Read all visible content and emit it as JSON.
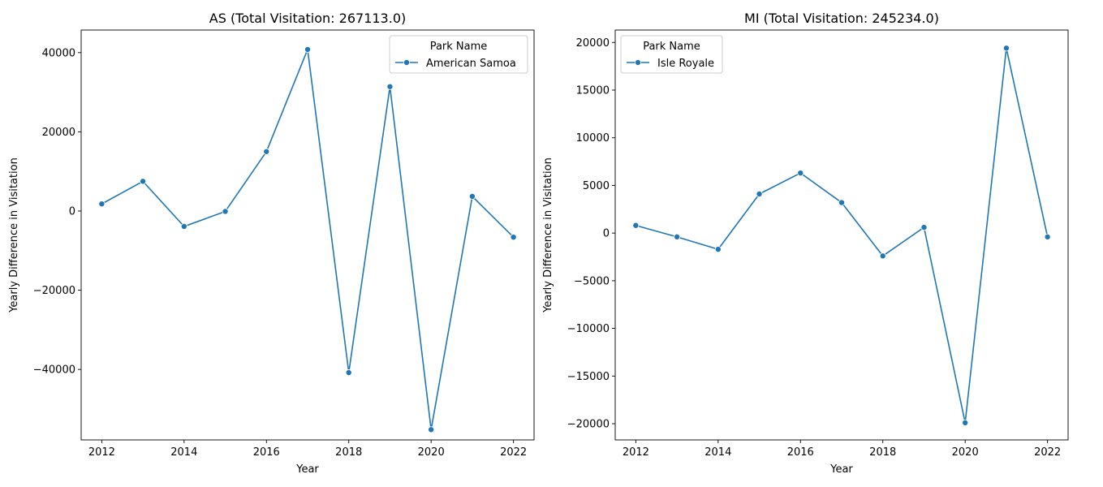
{
  "chart_data": [
    {
      "type": "line",
      "title": "AS (Total Visitation: 267113.0)",
      "xlabel": "Year",
      "ylabel": "Yearly Difference in Visitation",
      "x": [
        2012,
        2013,
        2014,
        2015,
        2016,
        2017,
        2018,
        2019,
        2020,
        2021,
        2022
      ],
      "xticks": [
        2012,
        2014,
        2016,
        2018,
        2020,
        2022
      ],
      "yticks": [
        -40000,
        -20000,
        0,
        20000,
        40000
      ],
      "xlim": [
        2011.5,
        2022.5
      ],
      "ylim": [
        -57800,
        45700
      ],
      "grid": false,
      "legend": {
        "title": "Park Name",
        "placement": "top-right"
      },
      "series": [
        {
          "name": "American Samoa",
          "color": "#1f77b4",
          "values": [
            1800,
            7500,
            -3900,
            -100,
            15000,
            40800,
            -40800,
            31400,
            -55200,
            3700,
            -6600
          ]
        }
      ]
    },
    {
      "type": "line",
      "title": "MI (Total Visitation: 245234.0)",
      "xlabel": "Year",
      "ylabel": "Yearly Difference in Visitation",
      "x": [
        2012,
        2013,
        2014,
        2015,
        2016,
        2017,
        2018,
        2019,
        2020,
        2021,
        2022
      ],
      "xticks": [
        2012,
        2014,
        2016,
        2018,
        2020,
        2022
      ],
      "yticks": [
        -20000,
        -15000,
        -10000,
        -5000,
        0,
        5000,
        10000,
        15000,
        20000
      ],
      "xlim": [
        2011.5,
        2022.5
      ],
      "ylim": [
        -21700,
        21300
      ],
      "grid": false,
      "legend": {
        "title": "Park Name",
        "placement": "top-left"
      },
      "series": [
        {
          "name": "Isle Royale",
          "color": "#1f77b4",
          "values": [
            800,
            -400,
            -1700,
            4100,
            6300,
            3200,
            -2400,
            600,
            -19900,
            19400,
            -400
          ]
        }
      ]
    }
  ]
}
